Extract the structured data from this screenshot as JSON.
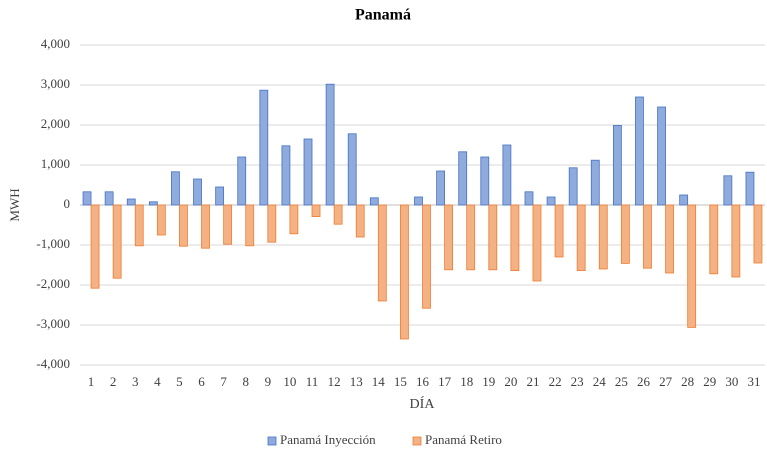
{
  "chart_data": {
    "type": "bar",
    "title": "Panamá",
    "x_label": "DÍA",
    "y_label": "MWH",
    "categories": [
      "1",
      "2",
      "3",
      "4",
      "5",
      "6",
      "7",
      "8",
      "9",
      "10",
      "11",
      "12",
      "13",
      "14",
      "15",
      "16",
      "17",
      "18",
      "19",
      "20",
      "21",
      "22",
      "23",
      "24",
      "25",
      "26",
      "27",
      "28",
      "29",
      "30",
      "31"
    ],
    "series": [
      {
        "name": "Panamá Inyección",
        "color": "#8faadc",
        "values": [
          330,
          330,
          150,
          80,
          830,
          650,
          450,
          1200,
          2870,
          1480,
          1650,
          3020,
          1780,
          180,
          0,
          200,
          850,
          1330,
          1200,
          1500,
          330,
          200,
          930,
          1120,
          1990,
          2700,
          2450,
          250,
          0,
          730,
          820
        ]
      },
      {
        "name": "Panamá Retiro",
        "color": "#f4b183",
        "values": [
          -2080,
          -1830,
          -1020,
          -750,
          -1030,
          -1080,
          -980,
          -1020,
          -930,
          -720,
          -290,
          -480,
          -800,
          -2400,
          -3350,
          -2580,
          -1620,
          -1620,
          -1620,
          -1640,
          -1900,
          -1300,
          -1640,
          -1600,
          -1460,
          -1580,
          -1700,
          -3060,
          -1720,
          -1800,
          -1450
        ]
      }
    ],
    "ylim": [
      -4000,
      4000
    ],
    "yticks": [
      {
        "value": -4000,
        "label": "-4,000"
      },
      {
        "value": -3000,
        "label": "-3,000"
      },
      {
        "value": -2000,
        "label": "-2,000"
      },
      {
        "value": -1000,
        "label": "-1,000"
      },
      0,
      {
        "value": 1000,
        "label": "1,000"
      },
      {
        "value": 2000,
        "label": "2,000"
      },
      {
        "value": 3000,
        "label": "3,000"
      },
      {
        "value": 4000,
        "label": "4,000"
      }
    ],
    "grid": true,
    "legend": "bottom"
  }
}
